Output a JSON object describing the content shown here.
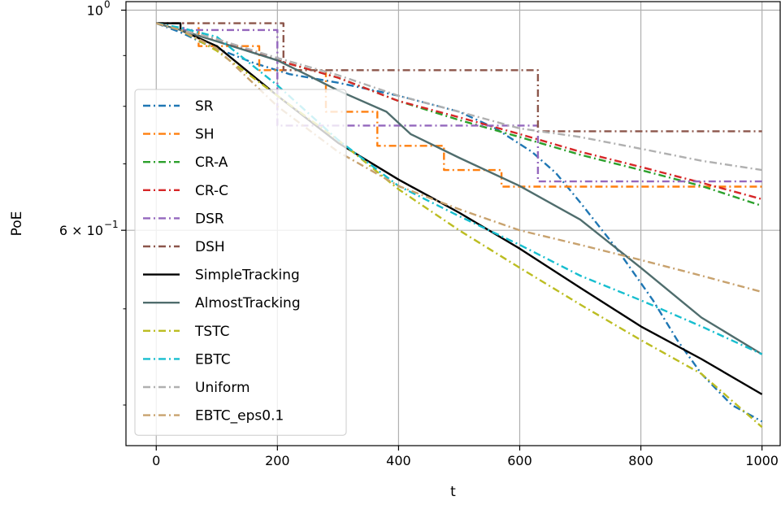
{
  "chart_data": {
    "type": "line",
    "xlabel": "t",
    "ylabel": "PoE",
    "xlim": [
      -50,
      1030
    ],
    "ylim": [
      0.364,
      1.02
    ],
    "yscale": "log",
    "grid": true,
    "legend_position": "center-left",
    "x_ticks": [
      0,
      200,
      400,
      600,
      800,
      1000
    ],
    "x_tick_labels": [
      "0",
      "200",
      "400",
      "600",
      "800",
      "1000"
    ],
    "y_ticks": [
      {
        "value": 1.0,
        "label": "10",
        "sup": "0"
      },
      {
        "value": 0.6,
        "label": "6 × 10",
        "sup": "−1"
      }
    ],
    "series": [
      {
        "name": "SR",
        "color": "#1f77b4",
        "style": "dashdot",
        "points": [
          [
            0,
            0.97
          ],
          [
            40,
            0.95
          ],
          [
            80,
            0.925
          ],
          [
            120,
            0.905
          ],
          [
            160,
            0.885
          ],
          [
            220,
            0.862
          ],
          [
            300,
            0.845
          ],
          [
            400,
            0.82
          ],
          [
            500,
            0.79
          ],
          [
            560,
            0.76
          ],
          [
            620,
            0.72
          ],
          [
            660,
            0.685
          ],
          [
            700,
            0.64
          ],
          [
            760,
            0.575
          ],
          [
            820,
            0.51
          ],
          [
            860,
            0.465
          ],
          [
            900,
            0.43
          ],
          [
            950,
            0.4
          ],
          [
            1000,
            0.385
          ]
        ]
      },
      {
        "name": "SH",
        "color": "#ff7f0e",
        "style": "dashdot",
        "points": [
          [
            0,
            0.97
          ],
          [
            70,
            0.97
          ],
          [
            70,
            0.92
          ],
          [
            170,
            0.92
          ],
          [
            170,
            0.87
          ],
          [
            280,
            0.87
          ],
          [
            280,
            0.79
          ],
          [
            365,
            0.79
          ],
          [
            365,
            0.73
          ],
          [
            475,
            0.73
          ],
          [
            475,
            0.69
          ],
          [
            570,
            0.69
          ],
          [
            570,
            0.664
          ],
          [
            1000,
            0.664
          ]
        ]
      },
      {
        "name": "CR-A",
        "color": "#2ca02c",
        "style": "dashdot",
        "points": [
          [
            0,
            0.97
          ],
          [
            40,
            0.955
          ],
          [
            100,
            0.935
          ],
          [
            200,
            0.89
          ],
          [
            300,
            0.855
          ],
          [
            400,
            0.81
          ],
          [
            500,
            0.775
          ],
          [
            600,
            0.745
          ],
          [
            700,
            0.715
          ],
          [
            800,
            0.69
          ],
          [
            900,
            0.665
          ],
          [
            1000,
            0.635
          ]
        ]
      },
      {
        "name": "CR-C",
        "color": "#d62728",
        "style": "dashdot",
        "points": [
          [
            0,
            0.97
          ],
          [
            40,
            0.955
          ],
          [
            100,
            0.935
          ],
          [
            200,
            0.89
          ],
          [
            300,
            0.855
          ],
          [
            400,
            0.81
          ],
          [
            500,
            0.78
          ],
          [
            600,
            0.75
          ],
          [
            700,
            0.72
          ],
          [
            800,
            0.695
          ],
          [
            900,
            0.67
          ],
          [
            1000,
            0.645
          ]
        ]
      },
      {
        "name": "DSR",
        "color": "#9467bd",
        "style": "dashdot",
        "points": [
          [
            0,
            0.97
          ],
          [
            45,
            0.97
          ],
          [
            45,
            0.955
          ],
          [
            200,
            0.955
          ],
          [
            200,
            0.765
          ],
          [
            630,
            0.765
          ],
          [
            630,
            0.672
          ],
          [
            1000,
            0.672
          ]
        ]
      },
      {
        "name": "DSH",
        "color": "#8c564b",
        "style": "dashdot",
        "points": [
          [
            0,
            0.97
          ],
          [
            210,
            0.97
          ],
          [
            210,
            0.87
          ],
          [
            630,
            0.87
          ],
          [
            630,
            0.755
          ],
          [
            1000,
            0.755
          ]
        ]
      },
      {
        "name": "SimpleTracking",
        "color": "#000000",
        "style": "solid",
        "points": [
          [
            0,
            0.97
          ],
          [
            40,
            0.97
          ],
          [
            40,
            0.955
          ],
          [
            100,
            0.92
          ],
          [
            200,
            0.82
          ],
          [
            300,
            0.735
          ],
          [
            400,
            0.675
          ],
          [
            500,
            0.625
          ],
          [
            600,
            0.575
          ],
          [
            700,
            0.525
          ],
          [
            800,
            0.48
          ],
          [
            900,
            0.445
          ],
          [
            1000,
            0.41
          ]
        ]
      },
      {
        "name": "AlmostTracking",
        "color": "#4f6d6d",
        "style": "solid",
        "points": [
          [
            0,
            0.97
          ],
          [
            40,
            0.955
          ],
          [
            100,
            0.93
          ],
          [
            200,
            0.89
          ],
          [
            250,
            0.86
          ],
          [
            300,
            0.83
          ],
          [
            380,
            0.79
          ],
          [
            420,
            0.75
          ],
          [
            500,
            0.71
          ],
          [
            600,
            0.665
          ],
          [
            700,
            0.615
          ],
          [
            800,
            0.55
          ],
          [
            900,
            0.49
          ],
          [
            1000,
            0.45
          ]
        ]
      },
      {
        "name": "TSTC",
        "color": "#bcbd22",
        "style": "dashdot",
        "points": [
          [
            0,
            0.97
          ],
          [
            40,
            0.955
          ],
          [
            100,
            0.91
          ],
          [
            200,
            0.82
          ],
          [
            300,
            0.74
          ],
          [
            400,
            0.66
          ],
          [
            500,
            0.6
          ],
          [
            600,
            0.55
          ],
          [
            700,
            0.505
          ],
          [
            800,
            0.465
          ],
          [
            900,
            0.43
          ],
          [
            1000,
            0.38
          ]
        ]
      },
      {
        "name": "EBTC",
        "color": "#17becf",
        "style": "dashdot",
        "points": [
          [
            0,
            0.97
          ],
          [
            40,
            0.96
          ],
          [
            100,
            0.94
          ],
          [
            200,
            0.84
          ],
          [
            300,
            0.74
          ],
          [
            400,
            0.665
          ],
          [
            500,
            0.62
          ],
          [
            600,
            0.58
          ],
          [
            700,
            0.54
          ],
          [
            800,
            0.51
          ],
          [
            900,
            0.48
          ],
          [
            1000,
            0.45
          ]
        ]
      },
      {
        "name": "Uniform",
        "color": "#b0b0b0",
        "style": "dashdot",
        "points": [
          [
            0,
            0.97
          ],
          [
            40,
            0.955
          ],
          [
            100,
            0.935
          ],
          [
            200,
            0.895
          ],
          [
            300,
            0.86
          ],
          [
            400,
            0.82
          ],
          [
            500,
            0.79
          ],
          [
            600,
            0.76
          ],
          [
            700,
            0.745
          ],
          [
            800,
            0.725
          ],
          [
            900,
            0.705
          ],
          [
            1000,
            0.69
          ]
        ]
      },
      {
        "name": "EBTC_eps0.1",
        "color": "#c8a26e",
        "style": "dashdot",
        "points": [
          [
            0,
            0.97
          ],
          [
            40,
            0.955
          ],
          [
            100,
            0.915
          ],
          [
            200,
            0.8
          ],
          [
            300,
            0.72
          ],
          [
            400,
            0.665
          ],
          [
            500,
            0.63
          ],
          [
            600,
            0.6
          ],
          [
            700,
            0.58
          ],
          [
            800,
            0.56
          ],
          [
            900,
            0.54
          ],
          [
            1000,
            0.52
          ]
        ]
      }
    ]
  }
}
